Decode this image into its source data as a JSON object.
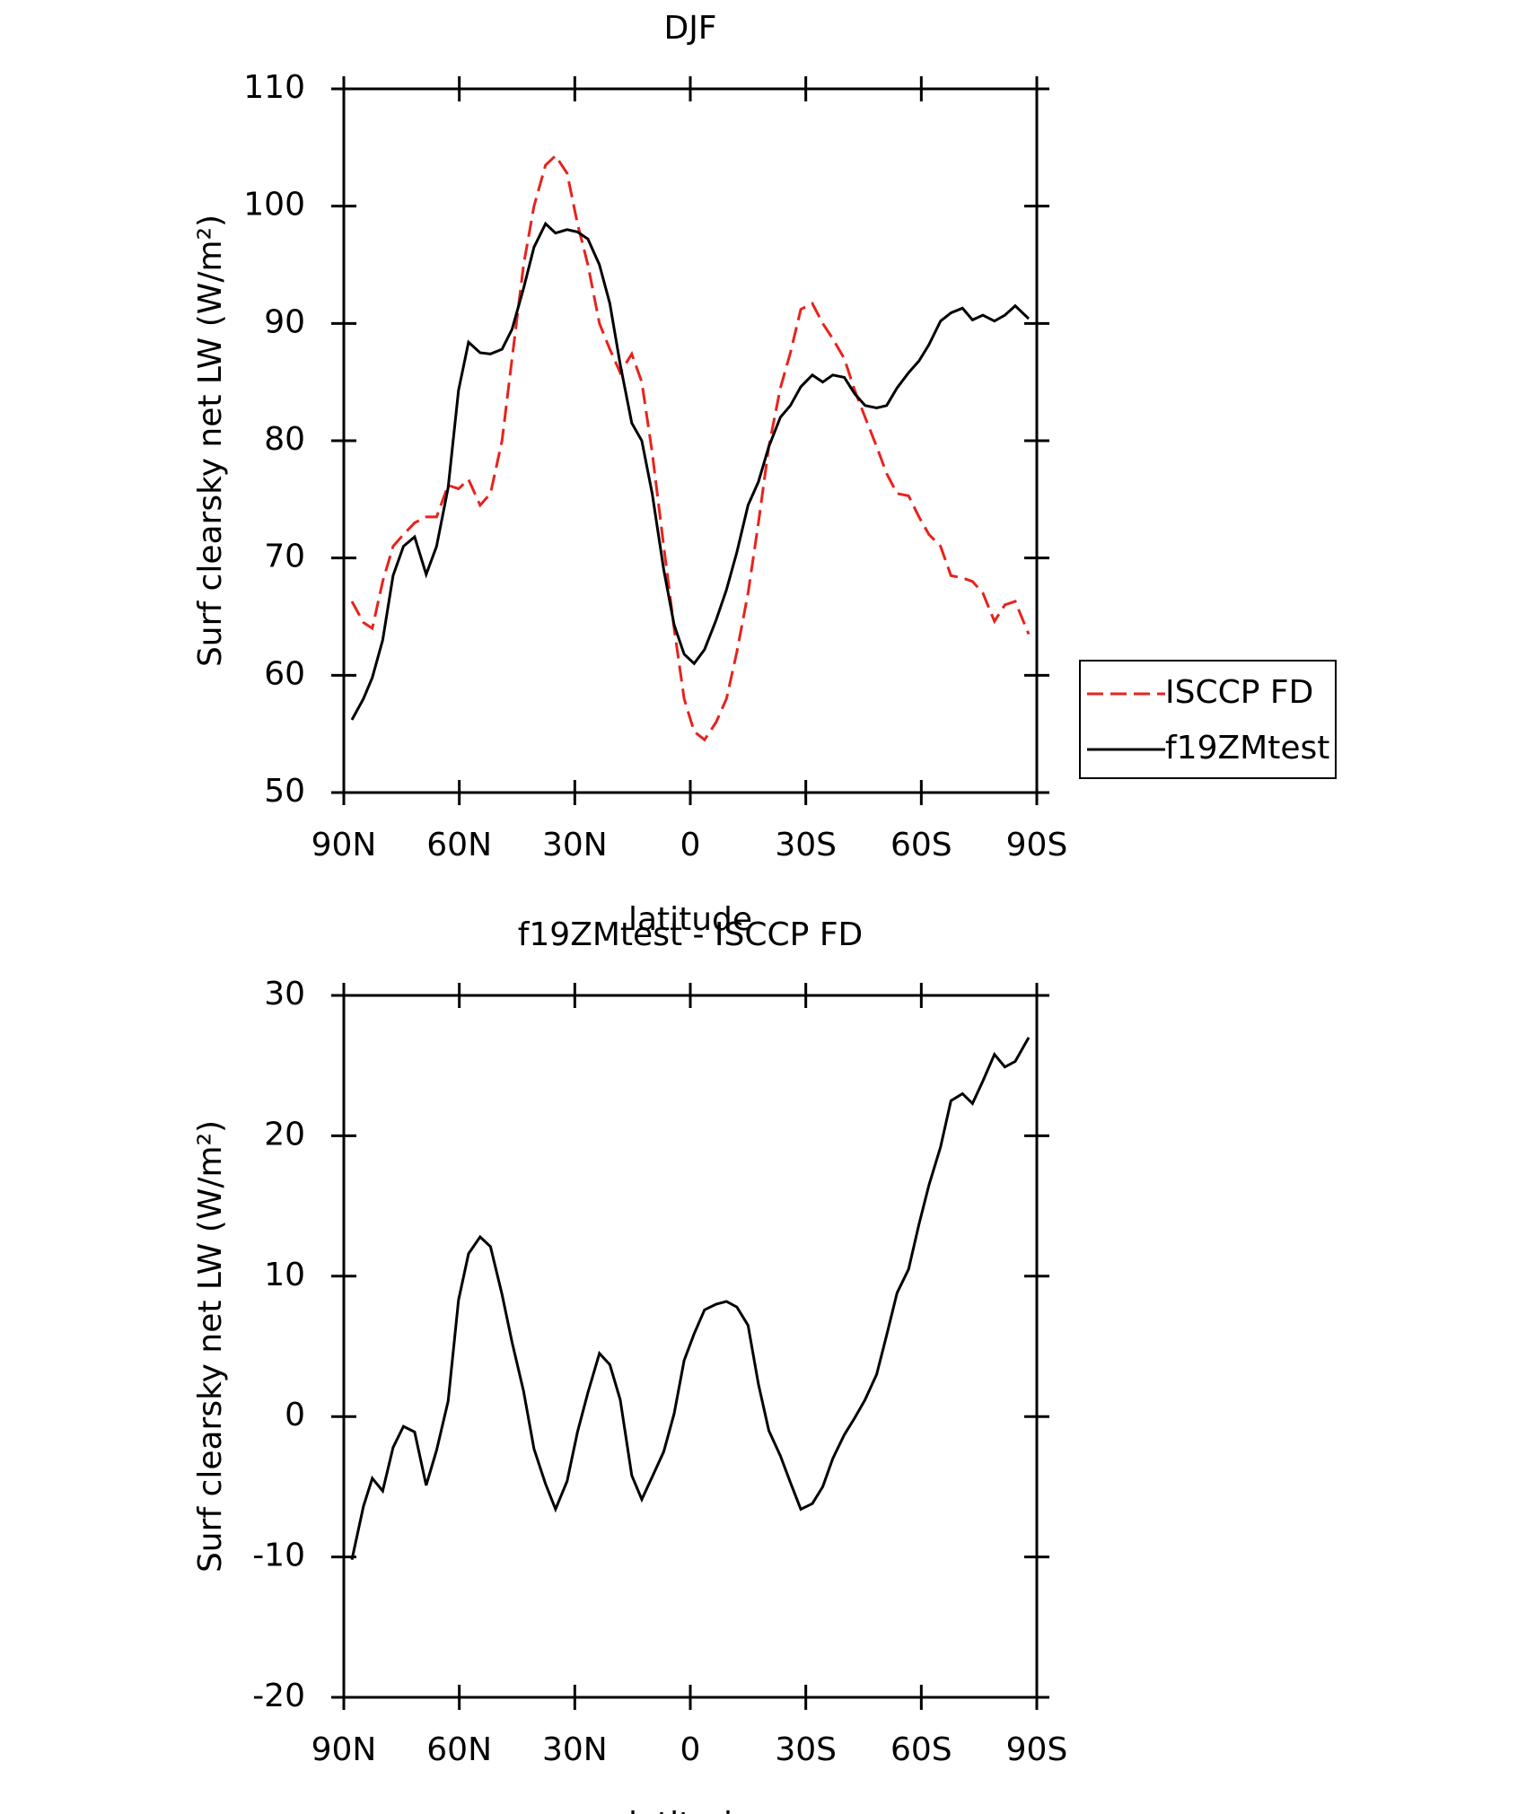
{
  "chart_data": [
    {
      "type": "line",
      "title": "DJF",
      "xlabel": "latitude",
      "ylabel": "Surf clearsky net LW (W/m²)",
      "x": [
        87.9,
        84.9,
        82.6,
        79.9,
        77.2,
        74.5,
        71.6,
        68.6,
        65.9,
        62.9,
        60.2,
        57.6,
        54.6,
        51.9,
        48.9,
        46.3,
        43.3,
        40.6,
        37.6,
        35.0,
        32.0,
        29.3,
        26.6,
        23.6,
        20.9,
        18.2,
        15.2,
        12.6,
        9.9,
        6.9,
        4.2,
        1.6,
        -1.0,
        -3.7,
        -6.7,
        -9.4,
        -12.1,
        -15.0,
        -17.7,
        -20.4,
        -23.4,
        -26.0,
        -28.7,
        -31.7,
        -34.4,
        -37.0,
        -40.0,
        -42.7,
        -45.4,
        -48.4,
        -51.0,
        -53.7,
        -56.7,
        -59.4,
        -62.0,
        -65.0,
        -67.7,
        -70.7,
        -73.3,
        -76.0,
        -79.0,
        -81.7,
        -84.4,
        -87.9
      ],
      "series": [
        {
          "name": "ISCCP FD",
          "color": "#e8221c",
          "dash": true,
          "values": [
            66.3,
            64.5,
            64,
            68,
            71,
            72,
            73,
            73.5,
            73.5,
            76.2,
            75.9,
            76.7,
            74.5,
            75.5,
            80,
            87,
            95,
            100,
            103.5,
            104.3,
            102.8,
            98.5,
            95,
            90,
            87.8,
            85.8,
            87.4,
            85,
            79,
            71,
            64,
            58,
            55.2,
            54.5,
            56,
            58,
            62,
            67,
            73,
            79.5,
            84.5,
            87.5,
            91.2,
            91.7,
            90,
            88.7,
            87,
            84.3,
            82,
            79.5,
            77.2,
            75.5,
            75.3,
            73.5,
            72,
            71,
            68.5,
            68.3,
            68,
            67,
            64.6,
            66,
            66.3,
            63.5
          ]
        },
        {
          "name": "f19ZMtest",
          "color": "#000000",
          "dash": false,
          "values": [
            56.2,
            58,
            59.8,
            63,
            68.5,
            71,
            71.8,
            68.6,
            71,
            76,
            84.3,
            88.4,
            87.5,
            87.4,
            87.8,
            89.5,
            93,
            96.5,
            98.5,
            97.7,
            98,
            97.8,
            97.2,
            95,
            91.7,
            86.5,
            81.5,
            80,
            75.5,
            69,
            64.3,
            61.8,
            61,
            62.2,
            64.7,
            67.3,
            70.5,
            74.5,
            76.5,
            79.5,
            82,
            83,
            84.6,
            85.6,
            85,
            85.6,
            85.4,
            84,
            83,
            82.8,
            83,
            84.5,
            85.8,
            86.8,
            88.2,
            90.2,
            90.9,
            91.3,
            90.3,
            90.7,
            90.2,
            90.7,
            91.5,
            90.4
          ]
        }
      ],
      "xlim": [
        90,
        -90
      ],
      "xticks": [
        {
          "value": 90,
          "label": "90N"
        },
        {
          "value": 60,
          "label": "60N"
        },
        {
          "value": 30,
          "label": "30N"
        },
        0,
        {
          "value": -30,
          "label": "30S"
        },
        {
          "value": -60,
          "label": "60S"
        },
        {
          "value": -90,
          "label": "90S"
        }
      ],
      "ylim": [
        50,
        110
      ],
      "yticks": [
        50,
        60,
        70,
        80,
        90,
        100,
        110
      ],
      "legend": "right"
    },
    {
      "type": "line",
      "title": "f19ZMtest - ISCCP FD",
      "xlabel": "latitude",
      "ylabel": "Surf clearsky net LW (W/m²)",
      "x": [
        87.9,
        84.9,
        82.6,
        79.9,
        77.2,
        74.5,
        71.6,
        68.6,
        65.9,
        62.9,
        60.2,
        57.6,
        54.6,
        51.9,
        48.9,
        46.3,
        43.3,
        40.6,
        37.6,
        35.0,
        32.0,
        29.3,
        26.6,
        23.6,
        20.9,
        18.2,
        15.2,
        12.6,
        9.9,
        6.9,
        4.2,
        1.6,
        -1.0,
        -3.7,
        -6.7,
        -9.4,
        -12.1,
        -15.0,
        -17.7,
        -20.4,
        -23.4,
        -26.0,
        -28.7,
        -31.7,
        -34.4,
        -37.0,
        -40.0,
        -42.7,
        -45.4,
        -48.4,
        -51.0,
        -53.7,
        -56.7,
        -59.4,
        -62.0,
        -65.0,
        -67.7,
        -70.7,
        -73.3,
        -76.0,
        -79.0,
        -81.7,
        -84.4,
        -87.9
      ],
      "series": [
        {
          "color": "#000000",
          "dash": false,
          "values": [
            -10.2,
            -6.4,
            -4.4,
            -5.3,
            -2.2,
            -0.7,
            -1.1,
            -4.9,
            -2.4,
            1.1,
            8.3,
            11.6,
            12.8,
            12.1,
            8.7,
            5.3,
            1.8,
            -2.3,
            -4.8,
            -6.6,
            -4.6,
            -1.1,
            1.7,
            4.5,
            3.7,
            1.2,
            -4.2,
            -5.9,
            -4.3,
            -2.5,
            0.2,
            4.0,
            5.9,
            7.6,
            8.0,
            8.2,
            7.8,
            6.5,
            2.3,
            -1.0,
            -2.8,
            -4.7,
            -6.6,
            -6.2,
            -5.0,
            -3.0,
            -1.3,
            -0.1,
            1.2,
            3.0,
            5.8,
            8.8,
            10.5,
            13.7,
            16.5,
            19.2,
            22.5,
            23.0,
            22.3,
            23.9,
            25.8,
            24.9,
            25.3,
            27.0
          ]
        }
      ],
      "xlim": [
        90,
        -90
      ],
      "xticks": [
        {
          "value": 90,
          "label": "90N"
        },
        {
          "value": 60,
          "label": "60N"
        },
        {
          "value": 30,
          "label": "30N"
        },
        0,
        {
          "value": -30,
          "label": "30S"
        },
        {
          "value": -60,
          "label": "60S"
        },
        {
          "value": -90,
          "label": "90S"
        }
      ],
      "ylim": [
        -20,
        30
      ],
      "yticks": [
        -20,
        -10,
        0,
        10,
        20,
        30
      ]
    }
  ]
}
